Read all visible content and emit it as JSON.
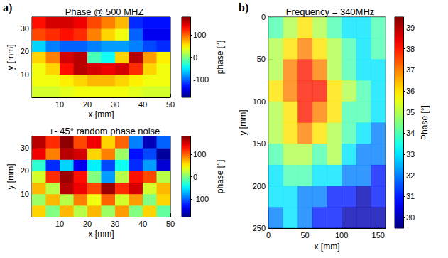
{
  "chart_data": [
    {
      "type": "heatmap",
      "panel": "a)",
      "title": "Phase @ 500 MHZ",
      "x_label": "x [mm]",
      "y_label": "y [mm]",
      "xlim": [
        0,
        50
      ],
      "xticks": [
        10,
        20,
        30,
        40,
        50
      ],
      "ylim": [
        0,
        35
      ],
      "yticks": [
        10,
        20,
        30
      ],
      "cells": {
        "x": [
          2.5,
          7.5,
          12.5,
          17.5,
          22.5,
          27.5,
          32.5,
          37.5,
          42.5,
          47.5
        ],
        "y": [
          2.5,
          7.5,
          12.5,
          17.5,
          22.5,
          27.5,
          32.5
        ],
        "values": [
          [
            30,
            30,
            35,
            40,
            40,
            40,
            40,
            35,
            30,
            30
          ],
          [
            40,
            40,
            50,
            60,
            70,
            70,
            60,
            50,
            40,
            40
          ],
          [
            40,
            60,
            130,
            160,
            150,
            140,
            150,
            120,
            60,
            40
          ],
          [
            60,
            90,
            150,
            160,
            -20,
            -40,
            60,
            160,
            80,
            50
          ],
          [
            -60,
            -90,
            -100,
            -100,
            -90,
            -80,
            -80,
            -90,
            -110,
            -120
          ],
          [
            110,
            120,
            130,
            120,
            90,
            60,
            40,
            -100,
            -140,
            -140
          ],
          [
            130,
            150,
            150,
            140,
            110,
            90,
            70,
            -120,
            -130,
            -130
          ]
        ]
      },
      "colorbar": {
        "label": "phase [°]",
        "lim": [
          -180,
          180
        ],
        "ticks": [
          -100,
          0,
          100
        ]
      }
    },
    {
      "type": "heatmap",
      "title": "+- 45° random phase noise",
      "x_label": "x [mm]",
      "y_label": "y [mm]",
      "xlim": [
        0,
        50
      ],
      "xticks": [
        10,
        20,
        30,
        40,
        50
      ],
      "ylim": [
        0,
        35
      ],
      "yticks": [
        10,
        20,
        30
      ],
      "cells": {
        "x": [
          2.5,
          7.5,
          12.5,
          17.5,
          22.5,
          27.5,
          32.5,
          37.5,
          42.5,
          47.5
        ],
        "y": [
          2.5,
          7.5,
          12.5,
          17.5,
          22.5,
          27.5,
          32.5
        ],
        "values": [
          [
            60,
            0,
            70,
            20,
            70,
            10,
            80,
            0,
            60,
            -10
          ],
          [
            10,
            70,
            20,
            90,
            40,
            100,
            30,
            80,
            0,
            60
          ],
          [
            70,
            20,
            160,
            140,
            110,
            170,
            120,
            150,
            30,
            70
          ],
          [
            30,
            120,
            170,
            130,
            0,
            -80,
            20,
            130,
            110,
            20
          ],
          [
            -30,
            -120,
            -60,
            -140,
            -50,
            -110,
            -40,
            -120,
            -80,
            -150
          ],
          [
            140,
            90,
            160,
            150,
            60,
            90,
            10,
            -130,
            -110,
            -170
          ],
          [
            160,
            120,
            175,
            110,
            140,
            60,
            100,
            -90,
            -160,
            -100
          ]
        ]
      },
      "colorbar": {
        "label": "phase [°]",
        "lim": [
          -180,
          180
        ],
        "ticks": [
          -100,
          0,
          100
        ]
      }
    },
    {
      "type": "heatmap",
      "panel": "b)",
      "title": "Frequency = 340MHz",
      "x_label": "x [mm]",
      "y_label": "y [mm]",
      "xlim": [
        0,
        160
      ],
      "xticks": [
        0,
        50,
        100,
        150
      ],
      "ylim": [
        250,
        0
      ],
      "yticks": [
        0,
        50,
        100,
        150,
        200,
        250
      ],
      "cells": {
        "x": [
          10,
          30,
          50,
          70,
          90,
          110,
          130,
          150
        ],
        "y": [
          12.5,
          37.5,
          62.5,
          87.5,
          112.5,
          137.5,
          162.5,
          187.5,
          212.5,
          237.5
        ],
        "values": [
          [
            34,
            35,
            36,
            35,
            34,
            33,
            33,
            34
          ],
          [
            35,
            36,
            37,
            36,
            35,
            34,
            33,
            34
          ],
          [
            35,
            37,
            38,
            37,
            35,
            34,
            33,
            33
          ],
          [
            36,
            37,
            38,
            38,
            36,
            35,
            34,
            33
          ],
          [
            35,
            36,
            38,
            37,
            36,
            34,
            34,
            33
          ],
          [
            35,
            36,
            37,
            36,
            35,
            34,
            33,
            32
          ],
          [
            34,
            35,
            35,
            34,
            35,
            33,
            32,
            32
          ],
          [
            33,
            34,
            34,
            33,
            33,
            32,
            32,
            31
          ],
          [
            33,
            33,
            32,
            32,
            31,
            31,
            30,
            31
          ],
          [
            32,
            33,
            32,
            31,
            31,
            30,
            30,
            30
          ]
        ]
      },
      "colorbar": {
        "label": "Phase [°]",
        "lim": [
          29.5,
          39.5
        ],
        "ticks": [
          30,
          31,
          32,
          33,
          34,
          35,
          36,
          37,
          38,
          39
        ]
      }
    }
  ]
}
